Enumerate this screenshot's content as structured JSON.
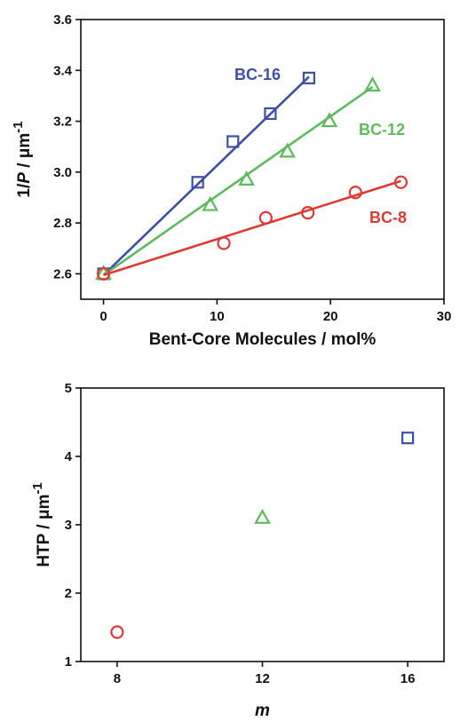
{
  "chart_data": [
    {
      "type": "scatter",
      "xlabel": "Bent-Core Molecules / mol%",
      "ylabel_parts": [
        "1/",
        "P",
        " / μm",
        "-1"
      ],
      "xlim": [
        -2,
        30
      ],
      "ylim": [
        2.5,
        3.6
      ],
      "xticks": [
        0,
        10,
        20,
        30
      ],
      "yticks": [
        2.6,
        2.8,
        3.0,
        3.2,
        3.4,
        3.6
      ],
      "ytick_labels": [
        "2.6",
        "2.8",
        "3.0",
        "3.2",
        "3.4",
        "3.6"
      ],
      "grid": false,
      "series": [
        {
          "name": "BC-16",
          "marker": "square",
          "color": "#3f4fa3",
          "x": [
            0,
            8.3,
            11.4,
            14.7,
            18.1
          ],
          "y": [
            2.6,
            2.96,
            3.12,
            3.23,
            3.37
          ],
          "fit": [
            [
              0,
              2.595
            ],
            [
              18.1,
              3.375
            ]
          ]
        },
        {
          "name": "BC-12",
          "marker": "triangle",
          "color": "#5fba5f",
          "x": [
            0,
            9.4,
            12.6,
            16.2,
            19.9,
            23.7
          ],
          "y": [
            2.6,
            2.87,
            2.97,
            3.08,
            3.2,
            3.34
          ],
          "fit": [
            [
              0,
              2.595
            ],
            [
              23.7,
              3.335
            ]
          ]
        },
        {
          "name": "BC-8",
          "marker": "circle",
          "color": "#dc3a35",
          "x": [
            0,
            10.6,
            14.3,
            18.0,
            22.2,
            26.2
          ],
          "y": [
            2.6,
            2.72,
            2.82,
            2.84,
            2.92,
            2.96
          ],
          "fit": [
            [
              0,
              2.595
            ],
            [
              26.2,
              2.965
            ]
          ]
        }
      ]
    },
    {
      "type": "scatter",
      "xlabel": "m",
      "ylabel_parts": [
        "HTP / μm",
        "-1"
      ],
      "xlim": [
        7,
        17
      ],
      "ylim": [
        1,
        5
      ],
      "xticks": [
        8,
        12,
        16
      ],
      "yticks": [
        1,
        2,
        3,
        4,
        5
      ],
      "ytick_labels": [
        "1",
        "2",
        "3",
        "4",
        "5"
      ],
      "grid": false,
      "points": [
        {
          "x": 8,
          "y": 1.43,
          "marker": "circle",
          "color": "#dc3a35"
        },
        {
          "x": 12,
          "y": 3.1,
          "marker": "triangle",
          "color": "#5fba5f"
        },
        {
          "x": 16,
          "y": 4.27,
          "marker": "square",
          "color": "#3f4fa3"
        }
      ]
    }
  ]
}
